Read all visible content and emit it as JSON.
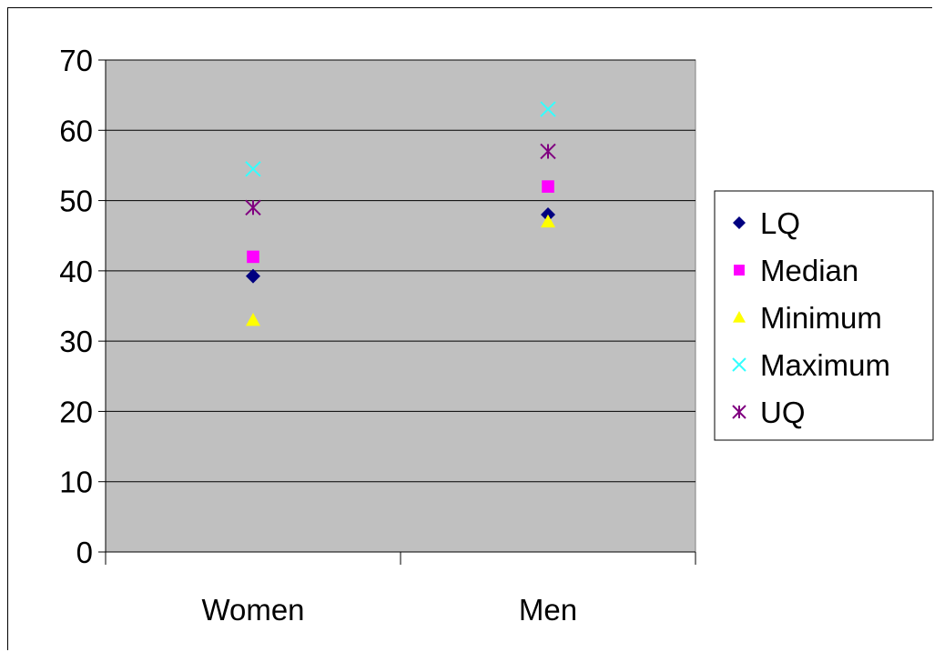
{
  "chart_data": {
    "type": "scatter",
    "title": "",
    "xlabel": "",
    "ylabel": "",
    "categories": [
      "Women",
      "Men"
    ],
    "ylim": [
      0,
      70
    ],
    "y_ticks": [
      "0",
      "10",
      "20",
      "30",
      "40",
      "50",
      "60",
      "70"
    ],
    "grid": true,
    "plot_background": "#c0c0c0",
    "legend_position": "right",
    "series": [
      {
        "name": "LQ",
        "marker": "diamond",
        "color": "#000080",
        "values": [
          39.25,
          48
        ]
      },
      {
        "name": "Median",
        "marker": "square",
        "color": "#ff00ff",
        "values": [
          42,
          52
        ]
      },
      {
        "name": "Minimum",
        "marker": "triangle",
        "color": "#ffff00",
        "values": [
          33,
          47
        ]
      },
      {
        "name": "Maximum",
        "marker": "x",
        "color": "#33ffff",
        "values": [
          54.5,
          63
        ]
      },
      {
        "name": "UQ",
        "marker": "star",
        "color": "#800080",
        "values": [
          49,
          57
        ]
      }
    ]
  }
}
